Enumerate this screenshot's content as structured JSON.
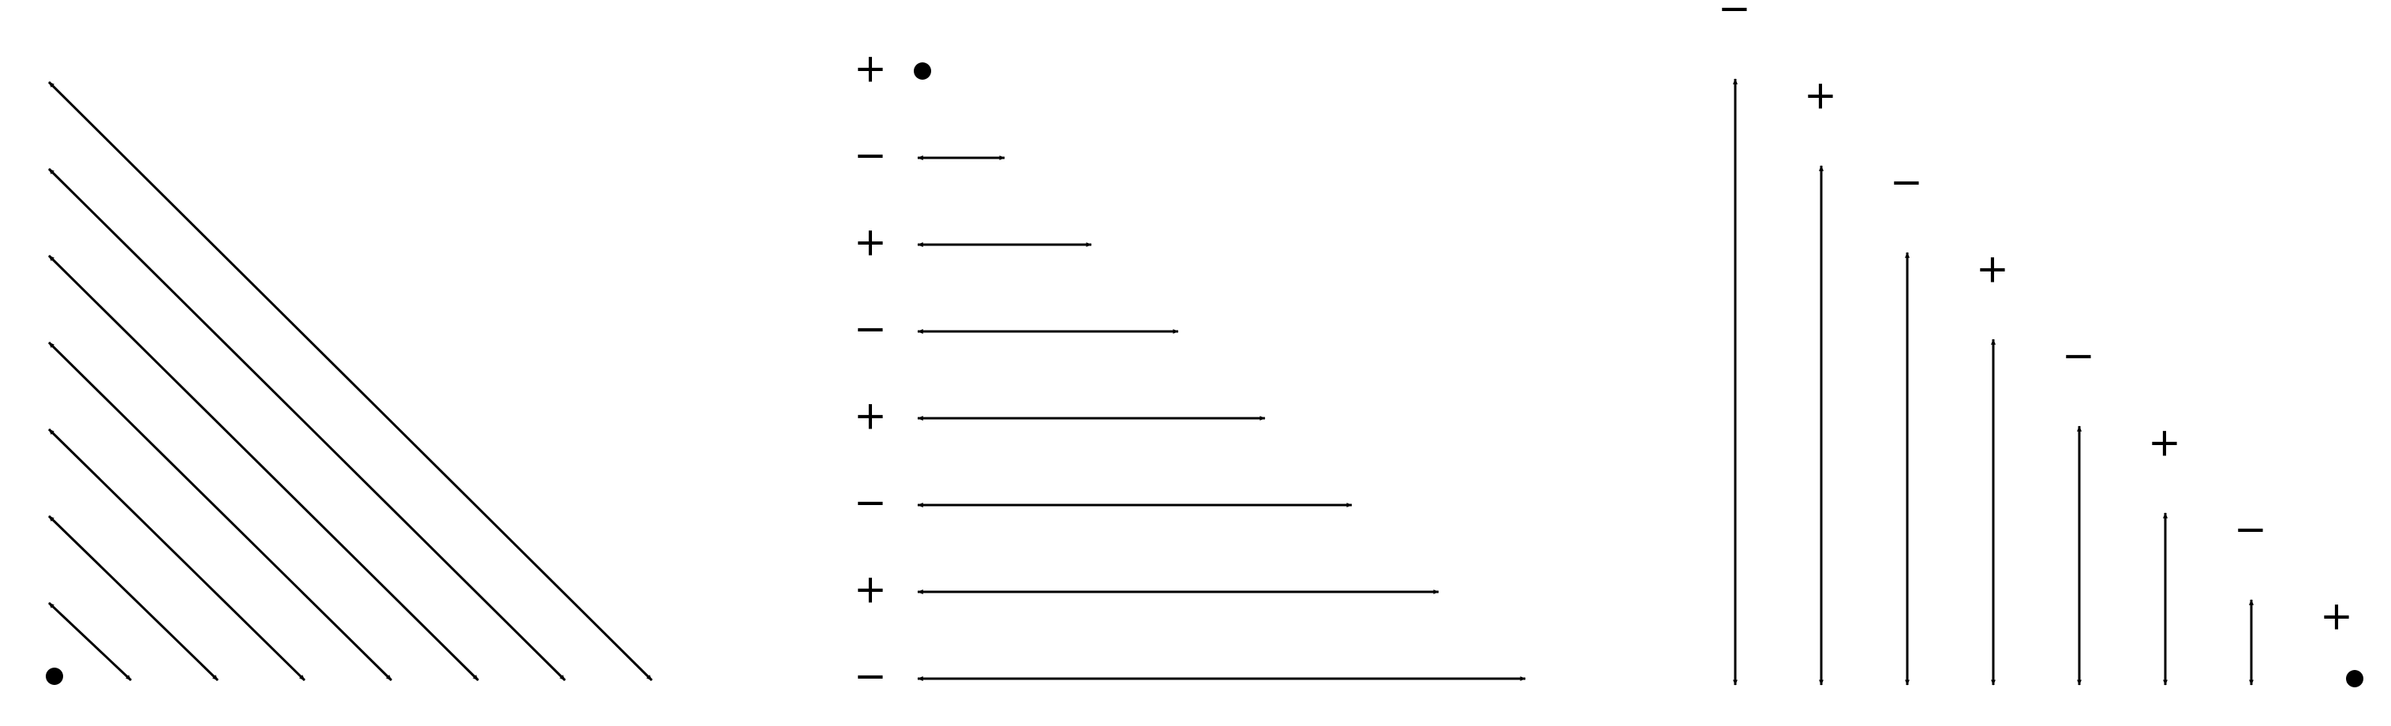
{
  "colors": {
    "ink": "#000000",
    "background": "#ffffff"
  },
  "left_panel": {
    "arrow_count": 7,
    "dot": true
  },
  "middle_panel": {
    "signs": [
      "+",
      "−",
      "+",
      "−",
      "+",
      "−",
      "+",
      "−"
    ],
    "arrow_count": 7,
    "dot": true
  },
  "right_panel": {
    "signs": [
      "−",
      "+",
      "−",
      "+",
      "−",
      "+",
      "−",
      "+"
    ],
    "arrow_count": 7,
    "dot": true
  }
}
